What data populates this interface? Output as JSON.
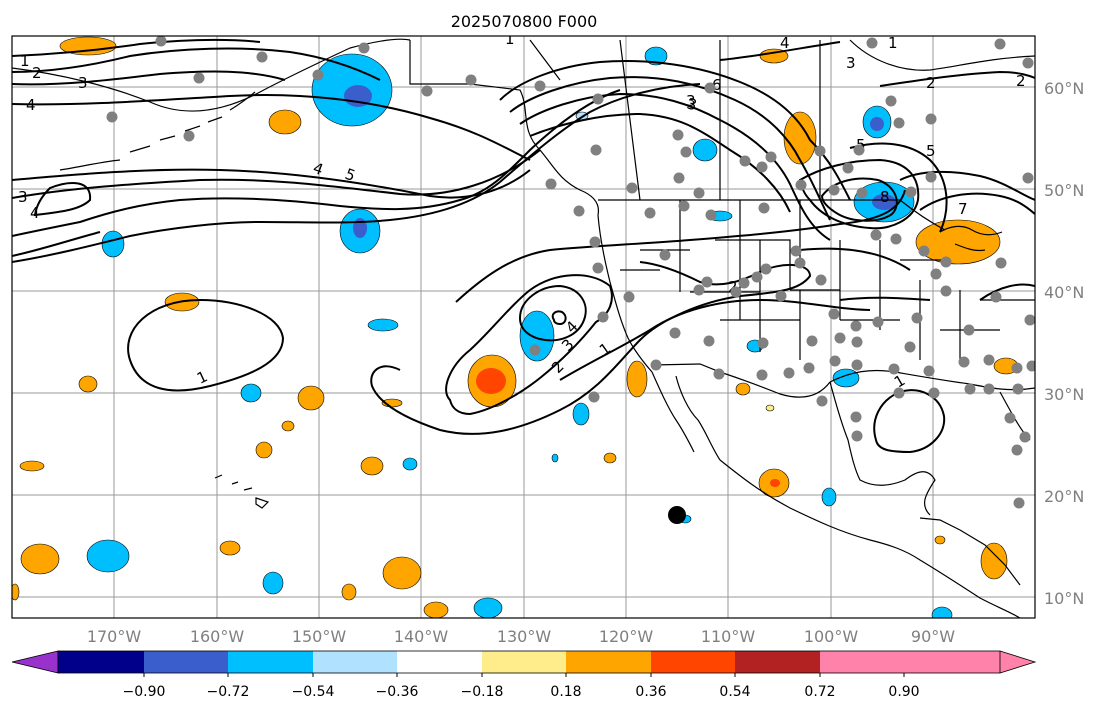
{
  "title": "2025070800 F000",
  "longitude_ticks": [
    "170°W",
    "160°W",
    "150°W",
    "140°W",
    "130°W",
    "120°W",
    "110°W",
    "100°W",
    "90°W"
  ],
  "latitude_ticks": [
    "60°N",
    "50°N",
    "40°N",
    "30°N",
    "20°N",
    "10°N"
  ],
  "colorbar": {
    "tick_labels": [
      "−0.90",
      "−0.72",
      "−0.54",
      "−0.36",
      "−0.18",
      "0.18",
      "0.36",
      "0.54",
      "0.72",
      "0.90"
    ],
    "colors": [
      "#9932cc",
      "#00008b",
      "#3a5fcd",
      "#00bfff",
      "#b0e2ff",
      "#ffffff",
      "#ffec8b",
      "#ffa500",
      "#ff4500",
      "#b22222",
      "#ff82ab"
    ]
  },
  "contour_labels": [
    "1",
    "2",
    "3",
    "4",
    "1",
    "2",
    "3",
    "4",
    "5",
    "3",
    "4",
    "1",
    "2",
    "3",
    "4",
    "6",
    "3",
    "5",
    "5",
    "8",
    "7",
    "2",
    "1",
    "3",
    "2",
    "4",
    "1",
    "1"
  ],
  "shading_colors": {
    "orange": "#ffa500",
    "light_yellow": "#ffec8b",
    "red_orange": "#ff4500",
    "sky": "#00bfff",
    "light_blue": "#b0e2ff",
    "royal_blue": "#3a5fcd"
  },
  "station_marker_color": "#808080",
  "storm_marker_color": "#000000"
}
